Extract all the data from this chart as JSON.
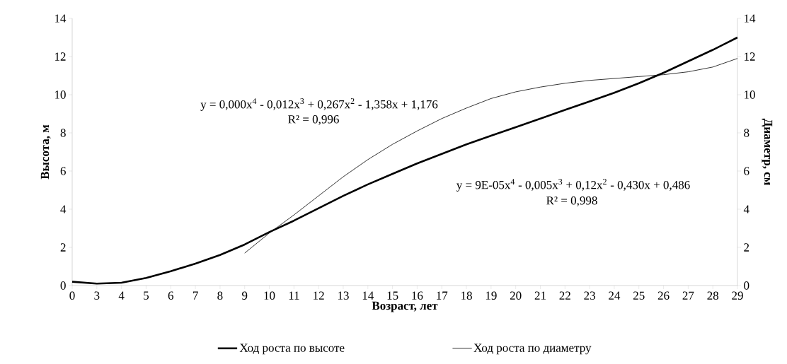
{
  "chart_data": {
    "type": "line",
    "xlabel": "Возраст, лет",
    "ylabel": "Высота, м",
    "y2label": "Диаметр, см",
    "categories": [
      "0",
      "3",
      "4",
      "5",
      "6",
      "7",
      "8",
      "9",
      "10",
      "11",
      "12",
      "13",
      "14",
      "15",
      "16",
      "17",
      "18",
      "19",
      "20",
      "21",
      "22",
      "23",
      "24",
      "25",
      "26",
      "27",
      "28",
      "29"
    ],
    "series": [
      {
        "name": "Ход роста по высоте",
        "color": "#000000",
        "values": [
          0.2,
          0.1,
          0.15,
          0.4,
          0.75,
          1.15,
          1.6,
          2.15,
          2.8,
          3.4,
          4.05,
          4.7,
          5.3,
          5.85,
          6.4,
          6.9,
          7.4,
          7.85,
          8.3,
          8.75,
          9.2,
          9.65,
          10.1,
          10.6,
          11.15,
          11.75,
          12.35,
          13.0
        ]
      },
      {
        "name": "Ход роста по диаметру",
        "color": "#000000",
        "axis": "y2",
        "values": [
          null,
          null,
          null,
          null,
          null,
          null,
          null,
          1.7,
          2.75,
          3.7,
          4.7,
          5.7,
          6.6,
          7.4,
          8.1,
          8.75,
          9.3,
          9.8,
          10.15,
          10.4,
          10.6,
          10.75,
          10.85,
          10.95,
          11.05,
          11.2,
          11.45,
          11.9
        ]
      }
    ],
    "ylim": [
      0,
      14
    ],
    "yticks": [
      0,
      2,
      4,
      6,
      8,
      10,
      12,
      14
    ],
    "y2lim": [
      0,
      14
    ],
    "y2ticks": [
      0,
      2,
      4,
      6,
      8,
      10,
      12,
      14
    ],
    "legend": "bottom",
    "annotations": [
      "y = 0,000x$^{4}$ - 0,012x$^{3}$ + 0,267x$^{2}$ - 1,358x + 1,176",
      "R² = 0,996",
      "y = 9E-05x$^{4}$ - 0,005x$^{3}$ + 0,12x$^{2}$ - 0,430x + 0,486",
      "R² = 0,998"
    ]
  }
}
